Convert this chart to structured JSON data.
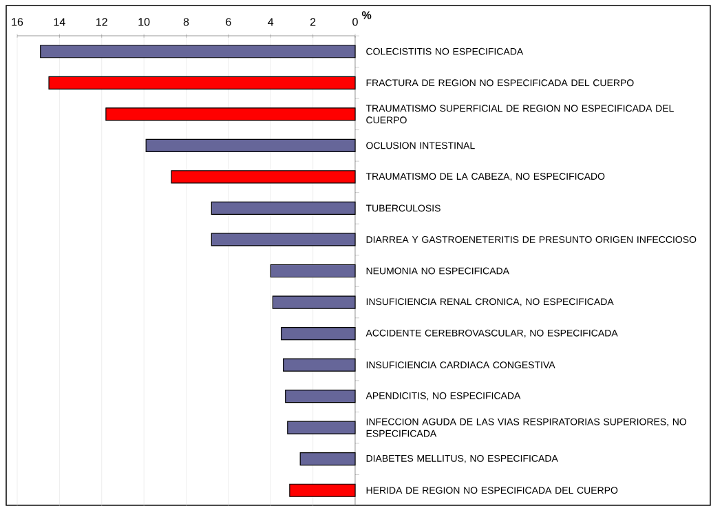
{
  "chart_data": {
    "type": "bar",
    "orientation": "horizontal",
    "xlabel": "%",
    "categories": [
      "COLECISTITIS NO ESPECIFICADA",
      "FRACTURA DE REGION NO ESPECIFICADA DEL CUERPO",
      "TRAUMATISMO SUPERFICIAL DE REGION NO ESPECIFICADA DEL CUERPO",
      "OCLUSION INTESTINAL",
      "TRAUMATISMO DE LA CABEZA, NO ESPECIFICADO",
      "TUBERCULOSIS",
      "DIARREA Y GASTROENETERITIS DE PRESUNTO ORIGEN INFECCIOSO",
      "NEUMONIA NO ESPECIFICADA",
      "INSUFICIENCIA RENAL CRONICA, NO ESPECIFICADA",
      "ACCIDENTE CEREBROVASCULAR, NO ESPECIFICADA",
      "INSUFICIENCIA CARDIACA CONGESTIVA",
      "APENDICITIS, NO ESPECIFICADA",
      "INFECCION AGUDA DE LAS VIAS RESPIRATORIAS SUPERIORES, NO ESPECIFICADA",
      "DIABETES MELLITUS, NO ESPECIFICADA",
      "HERIDA DE REGION NO ESPECIFICADA DEL CUERPO"
    ],
    "values": [
      14.9,
      14.5,
      11.8,
      9.9,
      8.7,
      6.8,
      6.8,
      4.0,
      3.9,
      3.5,
      3.4,
      3.3,
      3.2,
      2.6,
      3.1
    ],
    "colors": [
      "#666699",
      "#ff0000",
      "#ff0000",
      "#666699",
      "#ff0000",
      "#666699",
      "#666699",
      "#666699",
      "#666699",
      "#666699",
      "#666699",
      "#666699",
      "#666699",
      "#666699",
      "#ff0000"
    ],
    "xlim": [
      16,
      0
    ],
    "xticks": [
      16,
      14,
      12,
      10,
      8,
      6,
      4,
      2,
      0
    ],
    "grid": "x"
  }
}
